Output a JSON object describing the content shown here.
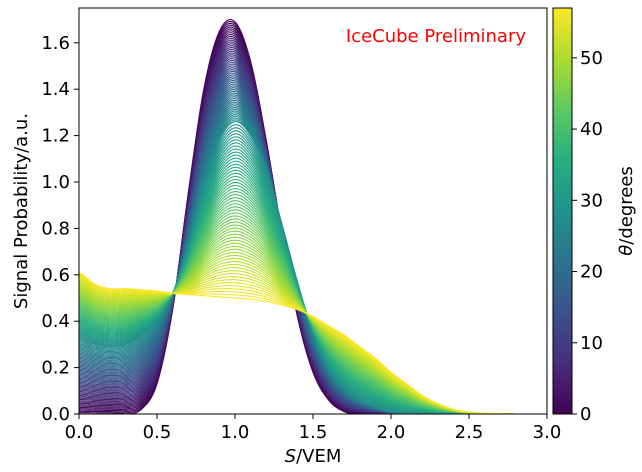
{
  "chart_data": {
    "type": "line",
    "title": "",
    "annotation": "IceCube Preliminary",
    "annotation_color": "#ff0000",
    "xlabel_italic": "S",
    "xlabel_rest": "/VEM",
    "ylabel": "Signal Probability/a.u.",
    "xlim": [
      0.0,
      3.0
    ],
    "ylim": [
      0.0,
      1.75
    ],
    "xticks": [
      {
        "v": 0.0,
        "t": "0.0"
      },
      {
        "v": 0.5,
        "t": "0.5"
      },
      {
        "v": 1.0,
        "t": "1.0"
      },
      {
        "v": 1.5,
        "t": "1.5"
      },
      {
        "v": 2.0,
        "t": "2.0"
      },
      {
        "v": 2.5,
        "t": "2.5"
      },
      {
        "v": 3.0,
        "t": "3.0"
      }
    ],
    "yticks": [
      {
        "v": 0.0,
        "t": "0.0"
      },
      {
        "v": 0.2,
        "t": "0.2"
      },
      {
        "v": 0.4,
        "t": "0.4"
      },
      {
        "v": 0.6,
        "t": "0.6"
      },
      {
        "v": 0.8,
        "t": "0.8"
      },
      {
        "v": 1.0,
        "t": "1.0"
      },
      {
        "v": 1.2,
        "t": "1.2"
      },
      {
        "v": 1.4,
        "t": "1.4"
      },
      {
        "v": 1.6,
        "t": "1.6"
      }
    ],
    "grid": false,
    "colorbar": {
      "label_italic": "θ",
      "label_rest": "/degrees",
      "range": [
        0,
        57
      ],
      "colormap": "viridis",
      "ticks": [
        {
          "v": 0,
          "t": "0"
        },
        {
          "v": 10,
          "t": "10"
        },
        {
          "v": 20,
          "t": "20"
        },
        {
          "v": 30,
          "t": "30"
        },
        {
          "v": 40,
          "t": "40"
        },
        {
          "v": 50,
          "t": "50"
        }
      ]
    },
    "series_family": {
      "parameter": "theta_degrees",
      "theta_min": 0,
      "theta_max": 57,
      "curve_count": 115,
      "x_grid": [
        0.0,
        0.1,
        0.2,
        0.3,
        0.4,
        0.5,
        0.6,
        0.7,
        0.8,
        0.9,
        1.0,
        1.1,
        1.2,
        1.3,
        1.4,
        1.5,
        1.6,
        1.7,
        1.8,
        1.9,
        2.0,
        2.1,
        2.2,
        2.3,
        2.4,
        2.5,
        2.6,
        2.7,
        2.8,
        2.9,
        3.0
      ],
      "series": [
        {
          "theta": 0,
          "values": [
            0.0,
            0.0,
            0.0,
            0.0,
            0.02,
            0.13,
            0.45,
            0.95,
            1.4,
            1.65,
            1.69,
            1.52,
            1.18,
            0.78,
            0.42,
            0.18,
            0.06,
            0.01,
            0.0,
            0.0,
            0.0,
            0.0,
            0.0,
            0.0,
            0.0,
            0.0,
            0.0,
            0.0,
            0.0,
            0.0,
            0.0
          ]
        },
        {
          "theta": 28,
          "values": [
            0.32,
            0.3,
            0.29,
            0.3,
            0.34,
            0.4,
            0.52,
            0.72,
            0.98,
            1.18,
            1.26,
            1.2,
            1.05,
            0.82,
            0.57,
            0.35,
            0.2,
            0.11,
            0.06,
            0.03,
            0.01,
            0.0,
            0.0,
            0.0,
            0.0,
            0.0,
            0.0,
            0.0,
            0.0,
            0.0,
            0.0
          ]
        },
        {
          "theta": 57,
          "values": [
            0.61,
            0.56,
            0.54,
            0.54,
            0.535,
            0.53,
            0.52,
            0.515,
            0.51,
            0.505,
            0.5,
            0.495,
            0.485,
            0.47,
            0.45,
            0.42,
            0.38,
            0.34,
            0.29,
            0.24,
            0.18,
            0.13,
            0.08,
            0.045,
            0.02,
            0.008,
            0.003,
            0.001,
            0.0,
            0.0,
            0.0
          ]
        }
      ]
    }
  }
}
